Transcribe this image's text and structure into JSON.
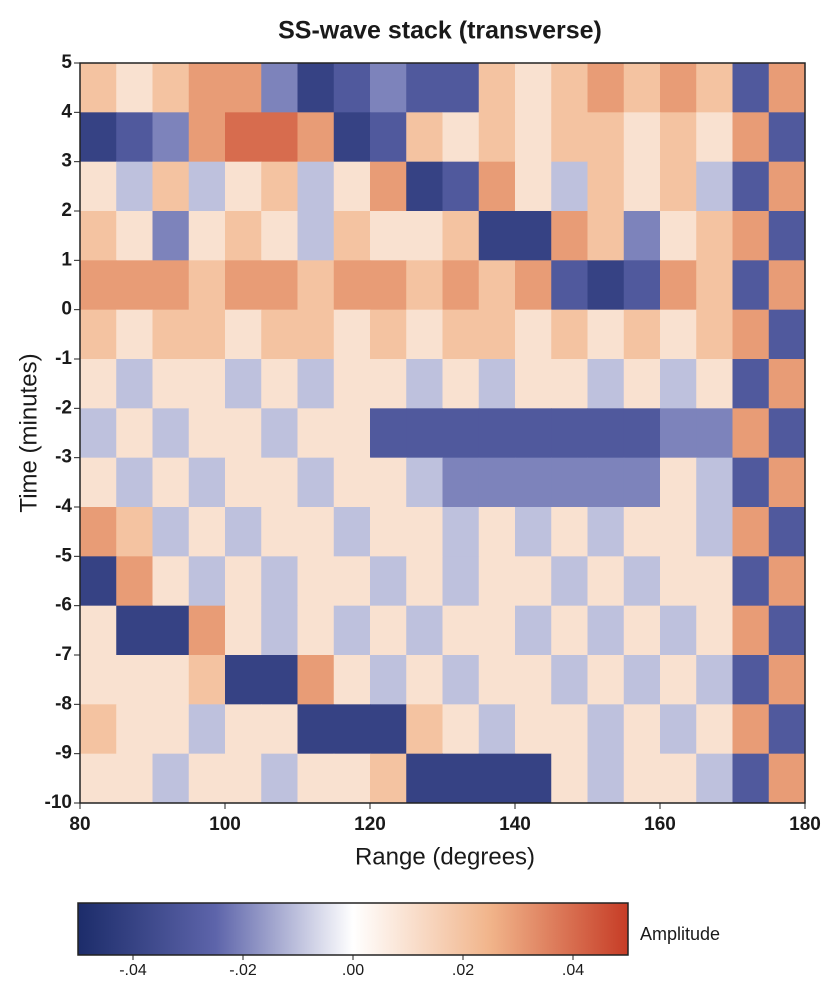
{
  "chart_data": {
    "type": "heatmap",
    "title": "SS-wave stack (transverse)",
    "x_label": "Range (degrees)",
    "y_label": "Time (minutes)",
    "colorbar_label": "Amplitude",
    "x_bins": [
      80,
      85,
      90,
      95,
      100,
      105,
      110,
      115,
      120,
      125,
      130,
      135,
      140,
      145,
      150,
      155,
      160,
      165,
      170,
      175,
      180
    ],
    "y_bins": [
      5,
      4,
      3,
      2,
      1,
      0,
      -1,
      -2,
      -3,
      -4,
      -5,
      -6,
      -7,
      -8,
      -9,
      -10
    ],
    "z": [
      [
        0.02,
        0.01,
        0.02,
        0.03,
        0.03,
        -0.02,
        -0.04,
        -0.03,
        -0.02,
        -0.03,
        -0.03,
        0.02,
        0.01,
        0.02,
        0.03,
        0.02,
        0.03,
        0.02,
        -0.03,
        0.03
      ],
      [
        -0.04,
        -0.03,
        -0.02,
        0.03,
        0.04,
        0.04,
        0.03,
        -0.04,
        -0.03,
        0.02,
        0.01,
        0.02,
        0.01,
        0.02,
        0.02,
        0.01,
        0.02,
        0.01,
        0.03,
        -0.03
      ],
      [
        0.01,
        -0.01,
        0.02,
        -0.01,
        0.01,
        0.02,
        -0.01,
        0.01,
        0.03,
        -0.04,
        -0.03,
        0.03,
        0.01,
        -0.01,
        0.02,
        0.01,
        0.02,
        -0.01,
        -0.03,
        0.03
      ],
      [
        0.02,
        0.01,
        -0.02,
        0.01,
        0.02,
        0.01,
        -0.01,
        0.02,
        0.01,
        0.01,
        0.02,
        -0.04,
        -0.04,
        0.03,
        0.02,
        -0.02,
        0.01,
        0.02,
        0.03,
        -0.03
      ],
      [
        0.03,
        0.03,
        0.03,
        0.02,
        0.03,
        0.03,
        0.02,
        0.03,
        0.03,
        0.02,
        0.03,
        0.02,
        0.03,
        -0.03,
        -0.04,
        -0.03,
        0.03,
        0.02,
        -0.03,
        0.03
      ],
      [
        0.02,
        0.01,
        0.02,
        0.02,
        0.01,
        0.02,
        0.02,
        0.01,
        0.02,
        0.01,
        0.02,
        0.02,
        0.01,
        0.02,
        0.01,
        0.02,
        0.01,
        0.02,
        0.03,
        -0.03
      ],
      [
        0.01,
        -0.01,
        0.01,
        0.01,
        -0.01,
        0.01,
        -0.01,
        0.01,
        0.01,
        -0.01,
        0.01,
        -0.01,
        0.01,
        0.01,
        -0.01,
        0.01,
        -0.01,
        0.01,
        -0.03,
        0.03
      ],
      [
        -0.01,
        0.01,
        -0.01,
        0.01,
        0.01,
        -0.01,
        0.01,
        0.01,
        -0.03,
        -0.03,
        -0.03,
        -0.03,
        -0.03,
        -0.03,
        -0.03,
        -0.03,
        -0.02,
        -0.02,
        0.03,
        -0.03
      ],
      [
        0.01,
        -0.01,
        0.01,
        -0.01,
        0.01,
        0.01,
        -0.01,
        0.01,
        0.01,
        -0.01,
        -0.02,
        -0.02,
        -0.02,
        -0.02,
        -0.02,
        -0.02,
        0.01,
        -0.01,
        -0.03,
        0.03
      ],
      [
        0.03,
        0.02,
        -0.01,
        0.01,
        -0.01,
        0.01,
        0.01,
        -0.01,
        0.01,
        0.01,
        -0.01,
        0.01,
        -0.01,
        0.01,
        -0.01,
        0.01,
        0.01,
        -0.01,
        0.03,
        -0.03
      ],
      [
        -0.04,
        0.03,
        0.01,
        -0.01,
        0.01,
        -0.01,
        0.01,
        0.01,
        -0.01,
        0.01,
        -0.01,
        0.01,
        0.01,
        -0.01,
        0.01,
        -0.01,
        0.01,
        0.01,
        -0.03,
        0.03
      ],
      [
        0.01,
        -0.04,
        -0.04,
        0.03,
        0.01,
        -0.01,
        0.01,
        -0.01,
        0.01,
        -0.01,
        0.01,
        0.01,
        -0.01,
        0.01,
        -0.01,
        0.01,
        -0.01,
        0.01,
        0.03,
        -0.03
      ],
      [
        0.01,
        0.01,
        0.01,
        0.02,
        -0.04,
        -0.04,
        0.03,
        0.01,
        -0.01,
        0.01,
        -0.01,
        0.01,
        0.01,
        -0.01,
        0.01,
        -0.01,
        0.01,
        -0.01,
        -0.03,
        0.03
      ],
      [
        0.02,
        0.01,
        0.01,
        -0.01,
        0.01,
        0.01,
        -0.04,
        -0.04,
        -0.04,
        0.02,
        0.01,
        -0.01,
        0.01,
        0.01,
        -0.01,
        0.01,
        -0.01,
        0.01,
        0.03,
        -0.03
      ],
      [
        0.01,
        0.01,
        -0.01,
        0.01,
        0.01,
        -0.01,
        0.01,
        0.01,
        0.02,
        -0.04,
        -0.04,
        -0.04,
        -0.04,
        0.01,
        -0.01,
        0.01,
        0.01,
        -0.01,
        -0.03,
        0.03
      ]
    ],
    "xlim": [
      80,
      180
    ],
    "ylim": [
      -10,
      5
    ],
    "xticks": [
      80,
      100,
      120,
      140,
      160,
      180
    ],
    "yticks": [
      5,
      4,
      3,
      2,
      1,
      0,
      -1,
      -2,
      -3,
      -4,
      -5,
      -6,
      -7,
      -8,
      -9,
      -10
    ],
    "zlim": [
      -0.05,
      0.05
    ],
    "colorscale": [
      "#1c2c6a",
      "#5d64aa",
      "#ffffff",
      "#f1b48a",
      "#c63c26"
    ],
    "colorbar_ticks": [
      {
        "value": -0.04,
        "label": "-.04"
      },
      {
        "value": -0.02,
        "label": "-.02"
      },
      {
        "value": 0,
        "label": ".00"
      },
      {
        "value": 0.02,
        "label": ".02"
      },
      {
        "value": 0.04,
        "label": ".04"
      }
    ]
  }
}
